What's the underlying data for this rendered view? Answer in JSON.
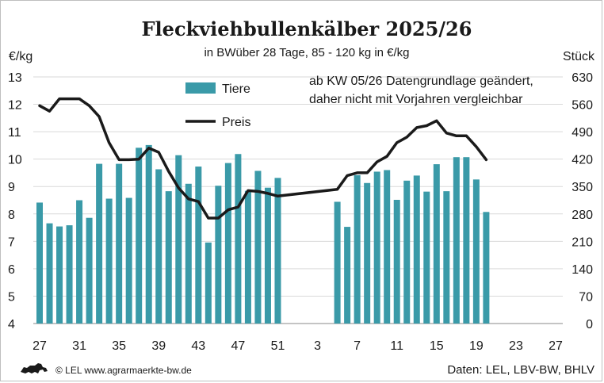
{
  "chart_data": {
    "type": "bar",
    "title": "Fleckviehbullenkälber 2025/26",
    "subtitle": "in BWüber 28 Tage, 85 - 120 kg in €/kg",
    "ylabel_left": "€/kg",
    "ylabel_right": "Stück",
    "ylim_left": [
      4,
      13
    ],
    "ylim_right": [
      0,
      630
    ],
    "left_ticks": [
      "13",
      "12",
      "11",
      "10",
      "9",
      "8",
      "7",
      "6",
      "5",
      "4"
    ],
    "right_ticks": [
      "630",
      "560",
      "490",
      "420",
      "350",
      "280",
      "210",
      "140",
      "70",
      "0"
    ],
    "x_ticks": [
      "27",
      "31",
      "35",
      "39",
      "43",
      "47",
      "51",
      "3",
      "7",
      "11",
      "15",
      "19",
      "23",
      "27"
    ],
    "grid": true,
    "annotation": [
      "ab KW 05/26 Datengrundlage geändert,",
      "daher nicht mit Vorjahren vergleichbar"
    ],
    "series": [
      {
        "name": "Tiere",
        "type": "bar",
        "axis": "right",
        "color": "#3a9aa8",
        "values": [
          {
            "week": "27",
            "value": 309
          },
          {
            "week": "28",
            "value": 256
          },
          {
            "week": "29",
            "value": 248
          },
          {
            "week": "30",
            "value": 251
          },
          {
            "week": "31",
            "value": 315
          },
          {
            "week": "32",
            "value": 270
          },
          {
            "week": "33",
            "value": 408
          },
          {
            "week": "34",
            "value": 319
          },
          {
            "week": "35",
            "value": 408
          },
          {
            "week": "36",
            "value": 321
          },
          {
            "week": "37",
            "value": 449
          },
          {
            "week": "38",
            "value": 456
          },
          {
            "week": "39",
            "value": 394
          },
          {
            "week": "40",
            "value": 338
          },
          {
            "week": "41",
            "value": 430
          },
          {
            "week": "42",
            "value": 357
          },
          {
            "week": "43",
            "value": 401
          },
          {
            "week": "44",
            "value": 207
          },
          {
            "week": "45",
            "value": 352
          },
          {
            "week": "46",
            "value": 410
          },
          {
            "week": "47",
            "value": 433
          },
          {
            "week": "48",
            "value": 339
          },
          {
            "week": "49",
            "value": 390
          },
          {
            "week": "50",
            "value": 347
          },
          {
            "week": "51",
            "value": 372
          },
          {
            "week": "5",
            "value": 311
          },
          {
            "week": "6",
            "value": 247
          },
          {
            "week": "7",
            "value": 379
          },
          {
            "week": "8",
            "value": 359
          },
          {
            "week": "9",
            "value": 388
          },
          {
            "week": "10",
            "value": 392
          },
          {
            "week": "11",
            "value": 316
          },
          {
            "week": "12",
            "value": 365
          },
          {
            "week": "13",
            "value": 378
          },
          {
            "week": "14",
            "value": 337
          },
          {
            "week": "15",
            "value": 407
          },
          {
            "week": "16",
            "value": 338
          },
          {
            "week": "17",
            "value": 425
          },
          {
            "week": "18",
            "value": 425
          },
          {
            "week": "19",
            "value": 368
          },
          {
            "week": "20",
            "value": 285
          }
        ]
      },
      {
        "name": "Preis",
        "type": "line",
        "axis": "left",
        "color": "#1a1a1a",
        "values": [
          {
            "week": "27",
            "value": 11.95
          },
          {
            "week": "28",
            "value": 11.75
          },
          {
            "week": "29",
            "value": 12.2
          },
          {
            "week": "30",
            "value": 12.2
          },
          {
            "week": "31",
            "value": 12.2
          },
          {
            "week": "32",
            "value": 11.95
          },
          {
            "week": "33",
            "value": 11.55
          },
          {
            "week": "34",
            "value": 10.6
          },
          {
            "week": "35",
            "value": 9.98
          },
          {
            "week": "36",
            "value": 9.98
          },
          {
            "week": "37",
            "value": 10.0
          },
          {
            "week": "38",
            "value": 10.4
          },
          {
            "week": "39",
            "value": 10.25
          },
          {
            "week": "40",
            "value": 9.55
          },
          {
            "week": "41",
            "value": 8.95
          },
          {
            "week": "42",
            "value": 8.55
          },
          {
            "week": "43",
            "value": 8.45
          },
          {
            "week": "44",
            "value": 7.85
          },
          {
            "week": "45",
            "value": 7.85
          },
          {
            "week": "46",
            "value": 8.15
          },
          {
            "week": "47",
            "value": 8.25
          },
          {
            "week": "48",
            "value": 8.85
          },
          {
            "week": "49",
            "value": 8.82
          },
          {
            "week": "50",
            "value": 8.75
          },
          {
            "week": "51",
            "value": 8.65
          },
          {
            "week": "5",
            "value": 8.9
          },
          {
            "week": "6",
            "value": 9.4
          },
          {
            "week": "7",
            "value": 9.5
          },
          {
            "week": "8",
            "value": 9.5
          },
          {
            "week": "9",
            "value": 9.9
          },
          {
            "week": "10",
            "value": 10.1
          },
          {
            "week": "11",
            "value": 10.6
          },
          {
            "week": "12",
            "value": 10.8
          },
          {
            "week": "13",
            "value": 11.15
          },
          {
            "week": "14",
            "value": 11.22
          },
          {
            "week": "15",
            "value": 11.4
          },
          {
            "week": "16",
            "value": 10.95
          },
          {
            "week": "17",
            "value": 10.85
          },
          {
            "week": "18",
            "value": 10.85
          },
          {
            "week": "19",
            "value": 10.45
          },
          {
            "week": "20",
            "value": 9.98
          }
        ]
      }
    ]
  },
  "footer": {
    "logo": "lion-logo",
    "credit": "© LEL www.agrarmaerkte-bw.de",
    "source": "Daten: LEL, LBV-BW, BHLV"
  }
}
